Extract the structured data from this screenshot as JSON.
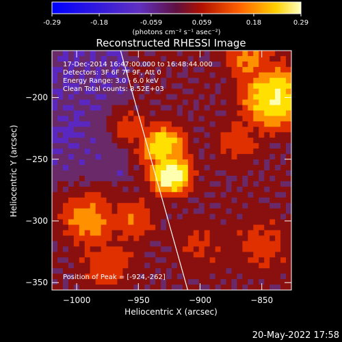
{
  "colorbar": {
    "ticks": [
      "-0.29",
      "-0.18",
      "-0.059",
      "0.059",
      "0.18",
      "0.29"
    ],
    "tick_values": [
      -0.29,
      -0.18,
      -0.059,
      0.059,
      0.18,
      0.29
    ],
    "range": [
      -0.29,
      0.29
    ],
    "units": "(photons cm⁻² s⁻¹ asec⁻²)"
  },
  "header": {
    "title": "Reconstructed RHESSI Image"
  },
  "annotations": {
    "time": "17-Dec-2014 16:47:00.000 to 16:48:44.000",
    "detectors": "Detectors: 3F 6F 7F 9F, Att 0",
    "energy": "Energy Range: 3.0 - 6.0 keV",
    "clean": "Clean    Total counts: 8.52E+03",
    "peak": "Position of Peak = [-924,-262]"
  },
  "footer": {
    "date": "20-May-2022 17:58"
  },
  "chart_data": {
    "type": "heatmap",
    "title": "Reconstructed RHESSI Image",
    "xlabel": "Heliocentric X (arcsec)",
    "ylabel": "Heliocentric Y (arcsec)",
    "xlim": [
      -1020,
      -826
    ],
    "ylim": [
      -356,
      -162
    ],
    "x_ticks": [
      -1000,
      -950,
      -900,
      -850
    ],
    "y_ticks": [
      -200,
      -250,
      -300,
      -350
    ],
    "x_tick_labels": [
      "−1000",
      "−950",
      "−900",
      "−850"
    ],
    "y_tick_labels": [
      "−200",
      "−250",
      "−300",
      "−350"
    ],
    "peak": {
      "x": -924,
      "y": -262
    },
    "limb_line": [
      [
        -965,
        -160
      ],
      [
        -910,
        -356
      ]
    ],
    "colormap": [
      "#1010e0",
      "#5a28c0",
      "#6a2a6a",
      "#8a1010",
      "#e03000",
      "#ff9000",
      "#ffe000",
      "#ffffb0"
    ]
  }
}
